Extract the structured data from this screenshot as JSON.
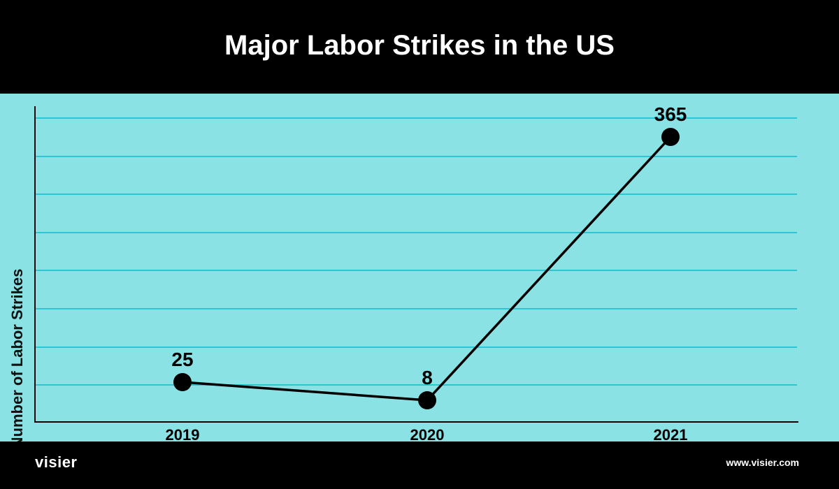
{
  "chart_data": {
    "type": "line",
    "title": "Major Labor Strikes in the US",
    "ylabel": "Number of Labor Strikes",
    "xlabel": "",
    "categories": [
      "2019",
      "2020",
      "2021"
    ],
    "series": [
      {
        "values": [
          25,
          8,
          365
        ]
      }
    ],
    "data_labels": [
      "25",
      "8",
      "365"
    ],
    "grid": true,
    "colors": {
      "background": "#8ae2e4",
      "grid": "#2cc6d2",
      "line": "#000000",
      "header": "#000000"
    }
  },
  "branding": {
    "logo": "visier",
    "website": "www.visier.com"
  }
}
